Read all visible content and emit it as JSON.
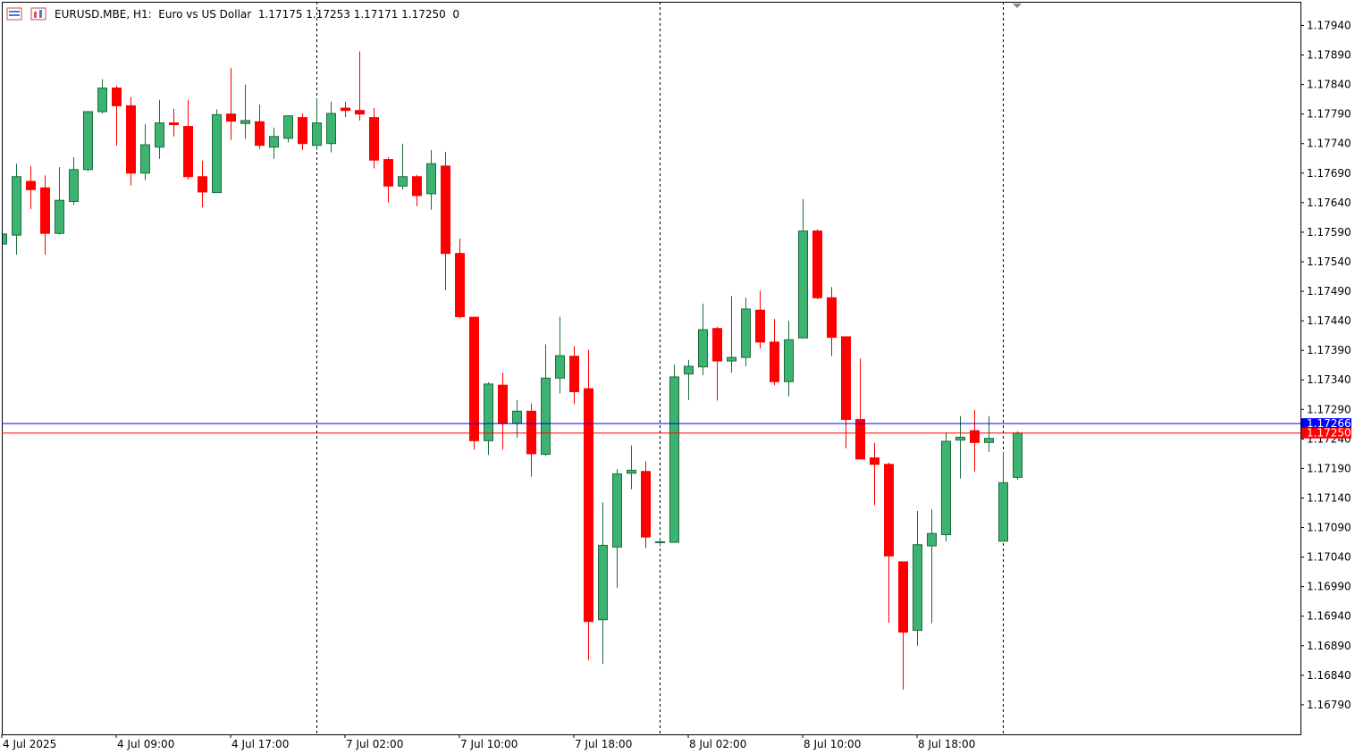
{
  "chart_data": {
    "type": "candlestick",
    "title": "EURUSD.MBE, H1:  Euro vs US Dollar  1.17175 1.17253 1.17171 1.17250  0",
    "categories": [
      "4 Jul 2025",
      null,
      null,
      null,
      null,
      null,
      null,
      null,
      "4 Jul 09:00",
      null,
      null,
      null,
      null,
      null,
      null,
      null,
      "4 Jul 17:00",
      null,
      null,
      null,
      null,
      null,
      null,
      null,
      "7 Jul 02:00",
      null,
      null,
      null,
      null,
      null,
      null,
      null,
      "7 Jul 10:00",
      null,
      null,
      null,
      null,
      null,
      null,
      null,
      "7 Jul 18:00",
      null,
      null,
      null,
      null,
      null,
      null,
      null,
      "8 Jul 02:00",
      null,
      null,
      null,
      null,
      null,
      null,
      null,
      "8 Jul 10:00",
      null,
      null,
      null,
      null,
      null,
      null,
      null,
      "8 Jul 18:00",
      null,
      null,
      null,
      null,
      null,
      null,
      null
    ],
    "open": [
      1.1757,
      1.17585,
      1.17676,
      1.17665,
      1.17588,
      1.17642,
      1.17696,
      1.17794,
      1.17834,
      1.17804,
      1.1769,
      1.17734,
      1.17775,
      1.17769,
      1.17684,
      1.17657,
      1.1779,
      1.17774,
      1.17777,
      1.17734,
      1.17749,
      1.17784,
      1.17737,
      1.1774,
      1.178,
      1.17796,
      1.17784,
      1.17713,
      1.17668,
      1.17684,
      1.17655,
      1.17702,
      1.17554,
      1.17446,
      1.17237,
      1.17331,
      1.17266,
      1.17287,
      1.17214,
      1.17343,
      1.1738,
      1.17325,
      1.16934,
      1.17057,
      1.17182,
      1.17185,
      1.17066,
      1.17065,
      1.1735,
      1.17362,
      1.17427,
      1.17372,
      1.17378,
      1.17458,
      1.17404,
      1.17337,
      1.17411,
      1.17592,
      1.17479,
      1.17413,
      1.17273,
      1.17208,
      1.17197,
      1.17032,
      1.16916,
      1.17059,
      1.17078,
      1.17238,
      1.17254,
      1.17234,
      1.17067,
      1.17175
    ],
    "high": [
      1.1759,
      1.17706,
      1.17702,
      1.17686,
      1.177,
      1.17717,
      1.17795,
      1.17849,
      1.17838,
      1.17819,
      1.17773,
      1.17814,
      1.17799,
      1.17814,
      1.17711,
      1.17798,
      1.17868,
      1.1784,
      1.17806,
      1.17767,
      1.17788,
      1.17791,
      1.17817,
      1.17811,
      1.17811,
      1.17896,
      1.178,
      1.17717,
      1.1774,
      1.17687,
      1.17729,
      1.17726,
      1.17579,
      1.17446,
      1.17336,
      1.17352,
      1.17306,
      1.173,
      1.174,
      1.17447,
      1.17397,
      1.17391,
      1.17133,
      1.17189,
      1.17229,
      1.17202,
      1.17073,
      1.17366,
      1.17374,
      1.17469,
      1.1743,
      1.17482,
      1.17479,
      1.17491,
      1.17443,
      1.1744,
      1.17646,
      1.17595,
      1.17497,
      1.17413,
      1.17376,
      1.17233,
      1.172,
      1.17032,
      1.17118,
      1.17121,
      1.17251,
      1.17279,
      1.17289,
      1.17279,
      1.17218,
      1.17253
    ],
    "low": [
      1.17565,
      1.17552,
      1.17629,
      1.17552,
      1.17586,
      1.17636,
      1.17693,
      1.17791,
      1.17737,
      1.17669,
      1.17678,
      1.17714,
      1.17752,
      1.17679,
      1.17632,
      1.17657,
      1.17746,
      1.17748,
      1.17731,
      1.17714,
      1.17742,
      1.17729,
      1.17729,
      1.17725,
      1.17785,
      1.17779,
      1.17698,
      1.1764,
      1.17662,
      1.17634,
      1.17628,
      1.17492,
      1.17444,
      1.17222,
      1.17213,
      1.17222,
      1.17242,
      1.17176,
      1.17211,
      1.17317,
      1.17299,
      1.16866,
      1.16859,
      1.16988,
      1.17155,
      1.17055,
      1.17058,
      1.17065,
      1.17306,
      1.17348,
      1.17305,
      1.17352,
      1.17363,
      1.17393,
      1.17331,
      1.17312,
      1.17411,
      1.17476,
      1.1738,
      1.17224,
      1.17206,
      1.17128,
      1.16929,
      1.16816,
      1.1689,
      1.16928,
      1.17067,
      1.17173,
      1.17185,
      1.17218,
      1.17067,
      1.17171
    ],
    "close": [
      1.17587,
      1.17684,
      1.17662,
      1.17588,
      1.17644,
      1.17696,
      1.17794,
      1.17834,
      1.17804,
      1.1769,
      1.17738,
      1.17775,
      1.17772,
      1.17684,
      1.17658,
      1.17789,
      1.17778,
      1.17779,
      1.17737,
      1.17752,
      1.17787,
      1.1774,
      1.17775,
      1.17791,
      1.17796,
      1.1779,
      1.17712,
      1.17668,
      1.17684,
      1.17652,
      1.17706,
      1.17554,
      1.17447,
      1.17237,
      1.17333,
      1.17266,
      1.17287,
      1.17215,
      1.17343,
      1.17381,
      1.1732,
      1.16931,
      1.1706,
      1.17181,
      1.17187,
      1.17074,
      1.17066,
      1.17345,
      1.17363,
      1.17425,
      1.17372,
      1.17378,
      1.1746,
      1.17404,
      1.17337,
      1.17408,
      1.17592,
      1.17479,
      1.17412,
      1.17273,
      1.17206,
      1.17197,
      1.17042,
      1.16913,
      1.17061,
      1.1708,
      1.17236,
      1.17243,
      1.17234,
      1.17241,
      1.17166,
      1.1725
    ],
    "up_color": "#3cb371",
    "down_color": "#ff0000",
    "ask_price": 1.17266,
    "ask_color": "#0000ff",
    "bid_price": {
      "value": 1.1725,
      "label": "1.17250"
    },
    "bid_color": "#ff0000",
    "ylim": [
      1.1674,
      1.1798
    ],
    "yticks": [
      {
        "value": 1.1794,
        "label": "1.17940"
      },
      {
        "value": 1.1789,
        "label": "1.17890"
      },
      {
        "value": 1.1784,
        "label": "1.17840"
      },
      {
        "value": 1.1779,
        "label": "1.17790"
      },
      {
        "value": 1.1774,
        "label": "1.17740"
      },
      {
        "value": 1.1769,
        "label": "1.17690"
      },
      {
        "value": 1.1764,
        "label": "1.17640"
      },
      {
        "value": 1.1759,
        "label": "1.17590"
      },
      {
        "value": 1.1754,
        "label": "1.17540"
      },
      {
        "value": 1.1749,
        "label": "1.17490"
      },
      {
        "value": 1.1744,
        "label": "1.17440"
      },
      {
        "value": 1.1739,
        "label": "1.17390"
      },
      {
        "value": 1.1734,
        "label": "1.17340"
      },
      {
        "value": 1.1729,
        "label": "1.17290"
      },
      {
        "value": 1.1724,
        "label": "1.17240"
      },
      {
        "value": 1.1719,
        "label": "1.17190"
      },
      {
        "value": 1.1714,
        "label": "1.17140"
      },
      {
        "value": 1.1709,
        "label": "1.17090"
      },
      {
        "value": 1.1704,
        "label": "1.17040"
      },
      {
        "value": 1.1699,
        "label": "1.16990"
      },
      {
        "value": 1.1694,
        "label": "1.16940"
      },
      {
        "value": 1.1689,
        "label": "1.16890"
      },
      {
        "value": 1.1684,
        "label": "1.16840"
      },
      {
        "value": 1.1679,
        "label": "1.16790"
      }
    ]
  }
}
